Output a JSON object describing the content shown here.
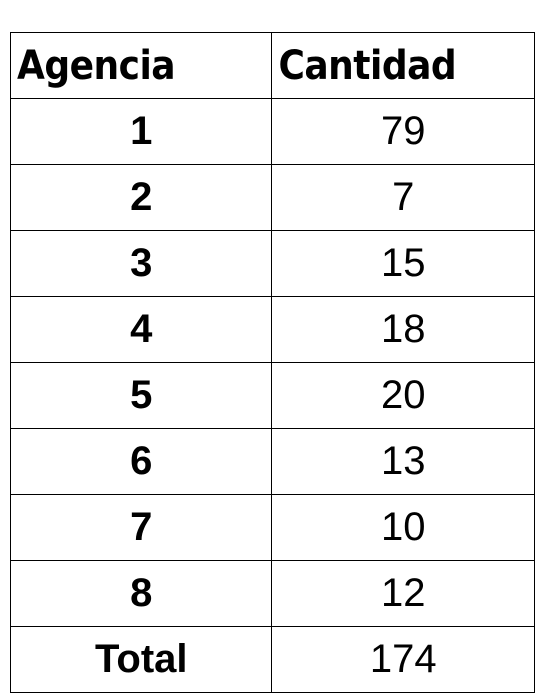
{
  "table": {
    "headers": [
      "Agencia",
      "Cantidad"
    ],
    "rows": [
      {
        "agencia": "1",
        "cantidad": "79"
      },
      {
        "agencia": "2",
        "cantidad": "7"
      },
      {
        "agencia": "3",
        "cantidad": "15"
      },
      {
        "agencia": "4",
        "cantidad": "18"
      },
      {
        "agencia": "5",
        "cantidad": "20"
      },
      {
        "agencia": "6",
        "cantidad": "13"
      },
      {
        "agencia": "7",
        "cantidad": "10"
      },
      {
        "agencia": "8",
        "cantidad": "12"
      }
    ],
    "total": {
      "label": "Total",
      "cantidad": "174"
    }
  }
}
